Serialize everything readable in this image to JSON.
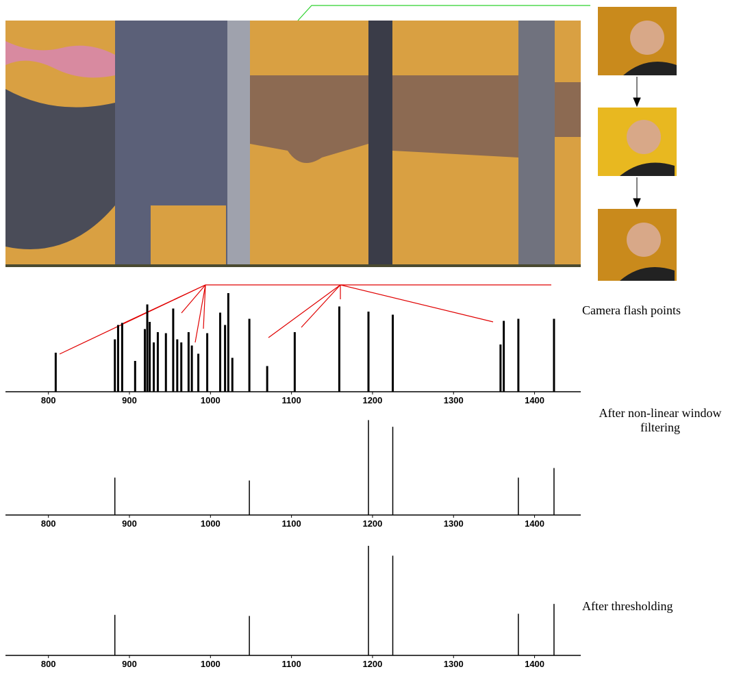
{
  "chart_data": [
    {
      "type": "spike",
      "annotation": "Camera flash points",
      "x": [
        809,
        882,
        886,
        891,
        907,
        919,
        922,
        925,
        930,
        935,
        945,
        954,
        959,
        964,
        973,
        977,
        985,
        996,
        1012,
        1018,
        1022,
        1027,
        1048,
        1070,
        1104,
        1159,
        1195,
        1225,
        1358,
        1362,
        1380,
        1424
      ],
      "values": [
        38,
        51,
        65,
        67,
        30,
        61,
        85,
        68,
        48,
        58,
        57,
        81,
        51,
        48,
        58,
        45,
        37,
        57,
        77,
        65,
        96,
        33,
        71,
        25,
        58,
        83,
        78,
        75,
        46,
        69,
        71,
        71
      ],
      "color": "#000000",
      "xlim": [
        747,
        1457
      ],
      "xticks": [
        800,
        900,
        1000,
        1100,
        1200,
        1300,
        1400
      ],
      "ylim": [
        0,
        100
      ]
    },
    {
      "type": "spike",
      "annotation": "After non-linear window filtering",
      "x": [
        882,
        1048,
        1195,
        1225,
        1380,
        1424
      ],
      "values": [
        39,
        36,
        99,
        92,
        39,
        49
      ],
      "color": "#000000",
      "xlim": [
        747,
        1457
      ],
      "xticks": [
        800,
        900,
        1000,
        1100,
        1200,
        1300,
        1400
      ],
      "ylim": [
        0,
        100
      ]
    },
    {
      "type": "spike",
      "annotation": "After thresholding",
      "x": [
        882,
        1048,
        1195,
        1225,
        1380,
        1424
      ],
      "values": [
        37,
        36,
        100,
        91,
        38,
        47
      ],
      "color": "#000000",
      "xlim": [
        747,
        1457
      ],
      "xticks": [
        800,
        900,
        1000,
        1100,
        1200,
        1300,
        1400
      ],
      "ylim": [
        0,
        100
      ]
    }
  ]
}
